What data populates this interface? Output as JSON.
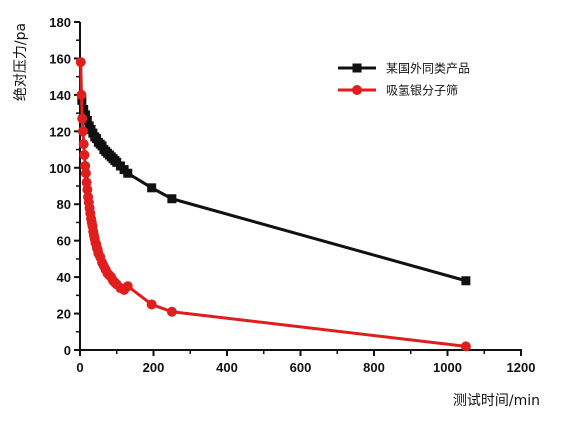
{
  "chart_data": {
    "type": "line",
    "xlabel": "测试时间/min",
    "ylabel": "绝对压力/pa",
    "xlim": [
      0,
      1200
    ],
    "ylim": [
      0,
      180
    ],
    "xticks": [
      "0",
      "200",
      "400",
      "600",
      "800",
      "1000",
      "1200"
    ],
    "yticks": [
      "0",
      "20",
      "40",
      "60",
      "80",
      "100",
      "120",
      "140",
      "160",
      "180"
    ],
    "grid": false,
    "legend_position": "top-right",
    "series": [
      {
        "name": "某国外同类产品",
        "color": "#111111",
        "marker": "square",
        "x": [
          5,
          10,
          15,
          20,
          25,
          30,
          35,
          40,
          45,
          50,
          55,
          60,
          65,
          70,
          75,
          80,
          85,
          90,
          95,
          100,
          110,
          120,
          130,
          195,
          250,
          1050
        ],
        "y": [
          137,
          132,
          129,
          126,
          123,
          121,
          119,
          117,
          116,
          114,
          113,
          112,
          110,
          109,
          108,
          107,
          106,
          105,
          104,
          103,
          101,
          99,
          97,
          89,
          83,
          38
        ]
      },
      {
        "name": "吸氢银分子筛",
        "color": "#e01e1e",
        "marker": "circle",
        "x": [
          2,
          4,
          6,
          8,
          10,
          12,
          14,
          16,
          18,
          20,
          22,
          24,
          26,
          28,
          30,
          32,
          34,
          36,
          38,
          40,
          42,
          44,
          46,
          48,
          50,
          55,
          60,
          65,
          70,
          75,
          80,
          85,
          90,
          95,
          100,
          110,
          120,
          130,
          195,
          250,
          1050
        ],
        "y": [
          158,
          140,
          127,
          120,
          113,
          107,
          101,
          97,
          92,
          88,
          84,
          81,
          78,
          75,
          72,
          70,
          68,
          65,
          63,
          61,
          59,
          58,
          56,
          55,
          53,
          51,
          48,
          46,
          44,
          42,
          41,
          40,
          38,
          37,
          36,
          34,
          33,
          35,
          25,
          21,
          2
        ]
      }
    ]
  }
}
